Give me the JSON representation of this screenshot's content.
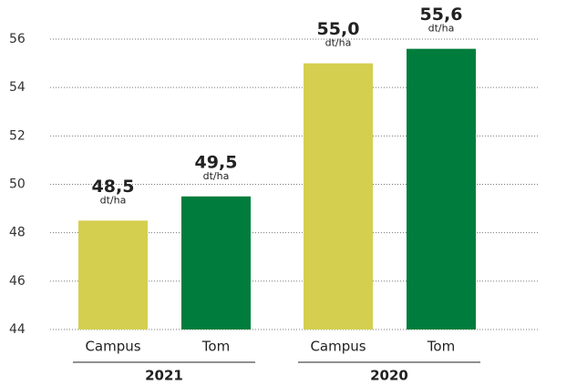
{
  "chart_data": {
    "type": "bar",
    "unit": "dt/ha",
    "groups": [
      {
        "label": "2021",
        "categories": [
          "Campus",
          "Tom"
        ],
        "values": [
          48.5,
          49.5
        ],
        "value_labels": [
          "48,5",
          "49,5"
        ],
        "colors": [
          "#d4cf4f",
          "#007d3c"
        ]
      },
      {
        "label": "2020",
        "categories": [
          "Campus",
          "Tom"
        ],
        "values": [
          55.0,
          55.6
        ],
        "value_labels": [
          "55,0",
          "55,6"
        ],
        "colors": [
          "#d4cf4f",
          "#007d3c"
        ]
      }
    ],
    "ylim": [
      44,
      56
    ],
    "yticks": [
      44,
      46,
      48,
      50,
      52,
      54,
      56
    ],
    "grid": true
  }
}
